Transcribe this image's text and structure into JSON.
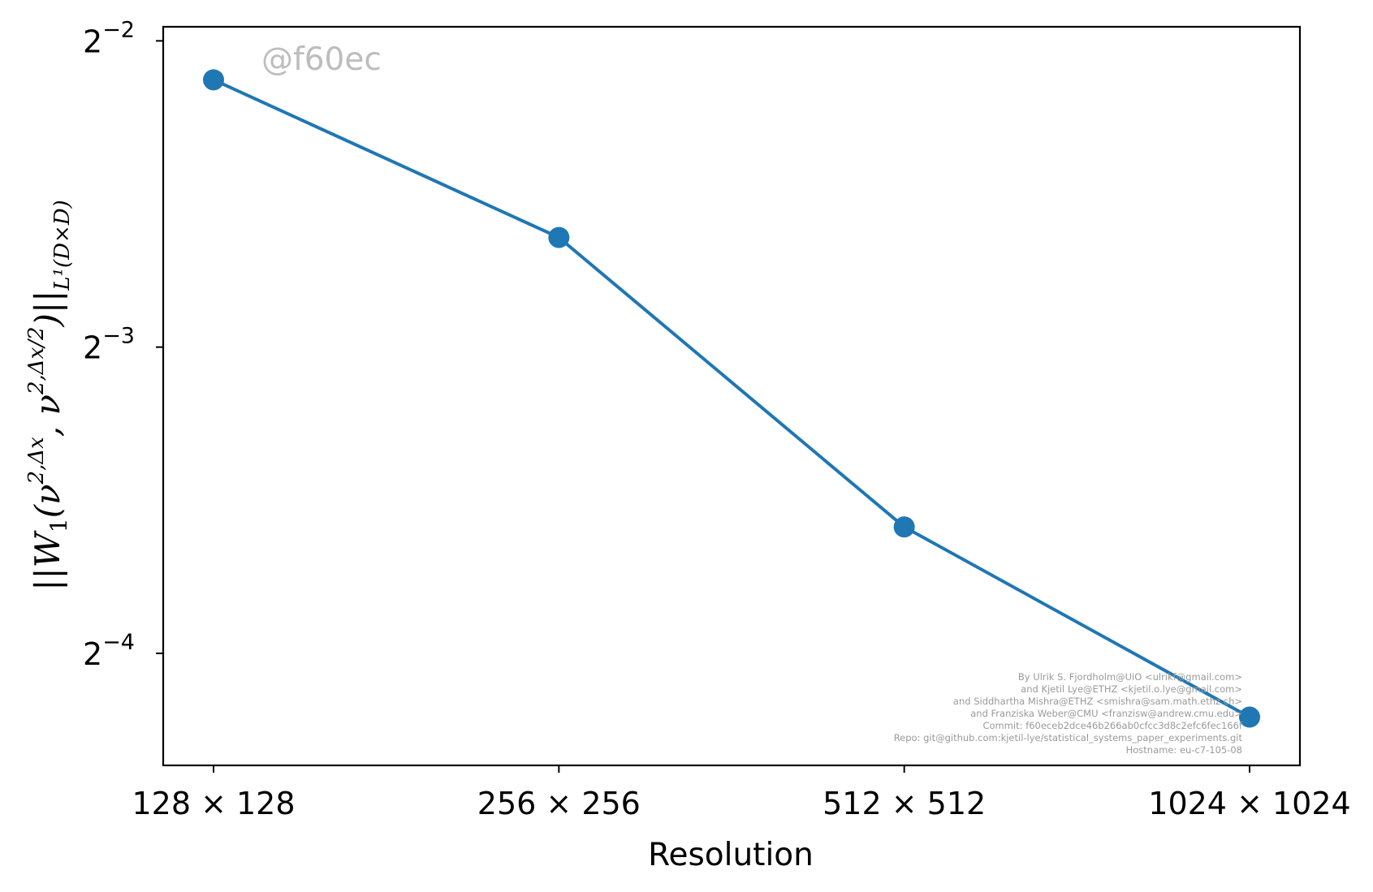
{
  "chart_data": {
    "type": "line",
    "categories": [
      "128 × 128",
      "256 × 256",
      "512 × 512",
      "1024 × 1024"
    ],
    "series": [
      {
        "values": [
          0.2289,
          0.1602,
          0.0832,
          0.0541
        ]
      }
    ],
    "title": "",
    "xlabel": "Resolution",
    "ylabel": "||W₁(ν²,Δx, ν²,Δx/2)||L¹(D×D)",
    "ylabel_parts": {
      "main": "||W",
      "w_sub": "1",
      "open": "(ν",
      "sup1": "2,Δx",
      "mid": ", ν",
      "sup2": "2,Δx/2",
      "close": ")||",
      "norm_sub": "L¹(D×D)"
    },
    "yscale": "log2",
    "ylim": [
      0.0485,
      0.2581
    ],
    "yticks": [
      {
        "value": 0.25,
        "base": "2",
        "exp": "−2"
      },
      {
        "value": 0.125,
        "base": "2",
        "exp": "−3"
      },
      {
        "value": 0.0625,
        "base": "2",
        "exp": "−4"
      }
    ],
    "grid": false,
    "legend": "none",
    "marker": "circle",
    "colors": {
      "series": "#1f77b4",
      "axes": "#000000",
      "watermark": "#bdbdbd",
      "credits": "#9a9a9a"
    }
  },
  "watermark": "@f60ec",
  "credits": [
    "By Ulrik S. Fjordholm@UiO <ulrikf@gmail.com>",
    "and Kjetil Lye@ETHZ <kjetil.o.lye@gmail.com>",
    "and Siddhartha Mishra@ETHZ <smishra@sam.math.ethz.ch>",
    "and Franziska Weber@CMU <franzisw@andrew.cmu.edu>",
    "Commit: f60eceb2dce46b266ab0cfcc3d8c2efc6fec166f",
    "Repo: git@github.com:kjetil-lye/statistical_systems_paper_experiments.git",
    "Hostname: eu-c7-105-08"
  ]
}
